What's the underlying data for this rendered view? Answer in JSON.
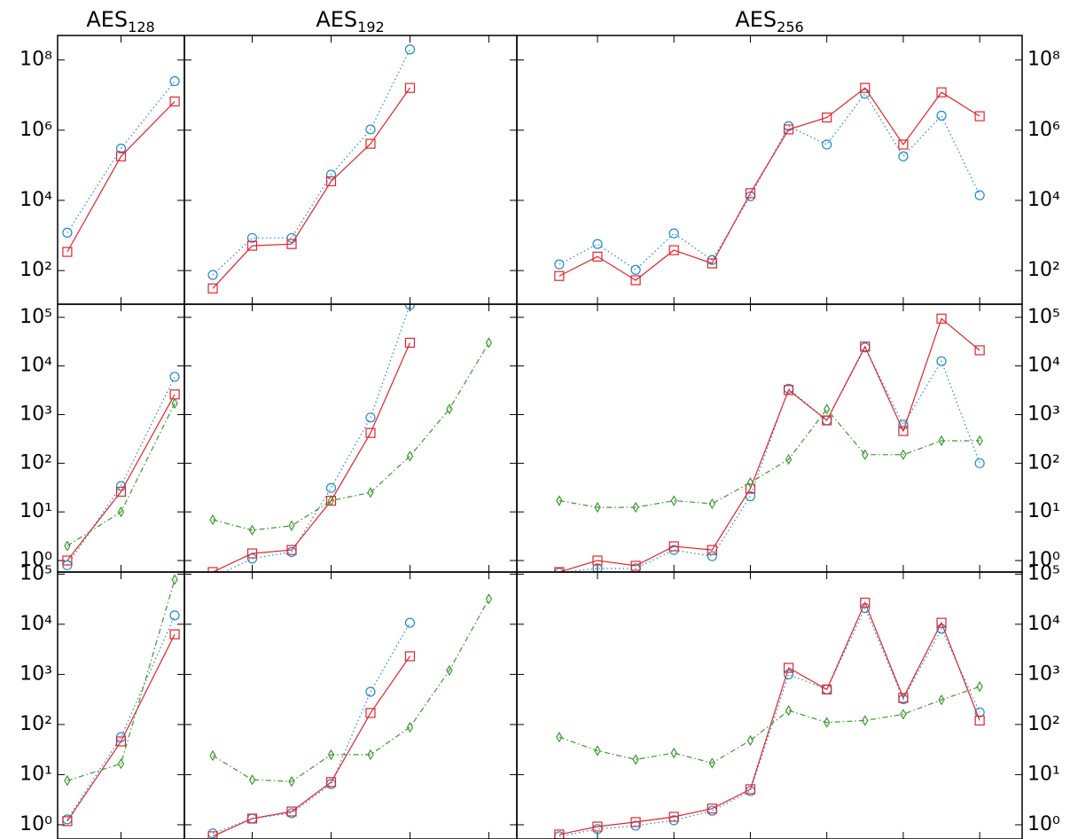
{
  "column_titles": [
    {
      "base": "AES",
      "sub": "128"
    },
    {
      "base": "AES",
      "sub": "192"
    },
    {
      "base": "AES",
      "sub": "256"
    }
  ],
  "chart_data": [
    {
      "type": "line",
      "log_y": true,
      "ylim": [
        11,
        500000000
      ],
      "yticks": [
        {
          "value": 100,
          "label": "10²"
        },
        {
          "value": 10000,
          "label": "10⁴"
        },
        {
          "value": 1000000,
          "label": "10⁶"
        },
        {
          "value": 100000000,
          "label": "10⁸"
        }
      ],
      "panels": [
        {
          "xlim": [
            0.82,
            3.18
          ],
          "xticks": [
            2
          ],
          "series": [
            {
              "color": "#1a8ad4",
              "marker": "circle",
              "dash": "dotted",
              "x": [
                1,
                2,
                3
              ],
              "values": [
                1200,
                300000,
                25000000
              ]
            },
            {
              "color": "#e3242b",
              "marker": "square",
              "dash": "solid",
              "x": [
                1,
                2,
                3
              ],
              "values": [
                340,
                180000,
                6600000
              ]
            }
          ]
        },
        {
          "xlim": [
            0.28,
            8.71
          ],
          "xticks": [
            2,
            4,
            6,
            8
          ],
          "series": [
            {
              "color": "#1a8ad4",
              "marker": "circle",
              "dash": "dotted",
              "x": [
                1,
                2,
                3,
                4,
                5,
                6
              ],
              "values": [
                75,
                850,
                850,
                54000,
                1050000,
                200000000
              ]
            },
            {
              "color": "#e3242b",
              "marker": "square",
              "dash": "solid",
              "x": [
                1,
                2,
                3,
                4,
                5,
                6
              ],
              "values": [
                31,
                510,
                570,
                35000,
                410000,
                16000000
              ]
            }
          ]
        },
        {
          "xlim": [
            -0.11,
            13.11
          ],
          "xticks": [
            2,
            4,
            6,
            8,
            10,
            12
          ],
          "series": [
            {
              "color": "#1a8ad4",
              "marker": "circle",
              "dash": "dotted",
              "x": [
                1,
                2,
                3,
                4,
                5,
                6,
                7,
                8,
                9,
                10,
                11,
                12
              ],
              "values": [
                150,
                570,
                105,
                1150,
                200,
                13000,
                1300000,
                390000,
                11000000,
                180000,
                2600000,
                14000
              ]
            },
            {
              "color": "#e3242b",
              "marker": "square",
              "dash": "solid",
              "x": [
                1,
                2,
                3,
                4,
                5,
                6,
                7,
                8,
                9,
                10,
                11,
                12
              ],
              "values": [
                70,
                250,
                53,
                380,
                160,
                16000,
                1050000,
                2300000,
                16000000,
                390000,
                12000000,
                2500000
              ]
            }
          ]
        }
      ]
    },
    {
      "type": "line",
      "log_y": true,
      "ylim": [
        0.58,
        186000
      ],
      "yticks": [
        {
          "value": 1,
          "label": "10⁰"
        },
        {
          "value": 10,
          "label": "10¹"
        },
        {
          "value": 100,
          "label": "10²"
        },
        {
          "value": 1000,
          "label": "10³"
        },
        {
          "value": 10000,
          "label": "10⁴"
        },
        {
          "value": 100000,
          "label": "10⁵"
        }
      ],
      "panels": [
        {
          "xlim": [
            0.82,
            3.18
          ],
          "xticks": [
            2
          ],
          "series": [
            {
              "color": "#1a8ad4",
              "marker": "circle",
              "dash": "dotted",
              "x": [
                1,
                2,
                3
              ],
              "values": [
                0.8,
                34,
                6000
              ]
            },
            {
              "color": "#e3242b",
              "marker": "square",
              "dash": "solid",
              "x": [
                1,
                2,
                3
              ],
              "values": [
                1,
                26,
                2600
              ]
            },
            {
              "color": "#3c9a2e",
              "marker": "diamond",
              "dash": "dashdot",
              "x": [
                1,
                2,
                3
              ],
              "values": [
                2,
                10,
                1700
              ]
            }
          ]
        },
        {
          "xlim": [
            0.28,
            8.71
          ],
          "xticks": [
            2,
            4,
            6,
            8
          ],
          "series": [
            {
              "color": "#1a8ad4",
              "marker": "circle",
              "dash": "dotted",
              "x": [
                1,
                2,
                3,
                4,
                5,
                6
              ],
              "values": [
                0.45,
                1.1,
                1.5,
                31,
                870,
                180000
              ]
            },
            {
              "color": "#e3242b",
              "marker": "square",
              "dash": "solid",
              "x": [
                1,
                2,
                3,
                4,
                5,
                6
              ],
              "values": [
                0.58,
                1.4,
                1.65,
                17,
                420,
                30000
              ]
            },
            {
              "color": "#3c9a2e",
              "marker": "diamond",
              "dash": "dashdot",
              "x": [
                1,
                2,
                3,
                4,
                5,
                6,
                7,
                8
              ],
              "values": [
                6.9,
                4.2,
                5.2,
                17,
                25,
                140,
                1300,
                30000
              ]
            }
          ]
        },
        {
          "xlim": [
            -0.11,
            13.11
          ],
          "xticks": [
            2,
            4,
            6,
            8,
            10,
            12
          ],
          "series": [
            {
              "color": "#1a8ad4",
              "marker": "circle",
              "dash": "dotted",
              "x": [
                1,
                2,
                3,
                4,
                5,
                6,
                7,
                8,
                9,
                10,
                11,
                12
              ],
              "values": [
                0.56,
                0.69,
                0.69,
                1.65,
                1.23,
                21,
                3400,
                760,
                24000,
                620,
                12500,
                100
              ]
            },
            {
              "color": "#e3242b",
              "marker": "square",
              "dash": "solid",
              "x": [
                1,
                2,
                3,
                4,
                5,
                6,
                7,
                8,
                9,
                10,
                11,
                12
              ],
              "values": [
                0.58,
                1,
                0.78,
                1.96,
                1.65,
                30,
                3200,
                760,
                25000,
                460,
                94000,
                21000
              ]
            },
            {
              "color": "#3c9a2e",
              "marker": "diamond",
              "dash": "dashdot",
              "x": [
                1,
                2,
                3,
                4,
                5,
                6,
                7,
                8,
                9,
                10,
                11,
                12
              ],
              "values": [
                17,
                12.4,
                12.4,
                17,
                14.7,
                40,
                120,
                1300,
                150,
                150,
                290,
                290
              ]
            }
          ]
        }
      ]
    },
    {
      "type": "line",
      "log_y": true,
      "ylim": [
        0.52,
        110000
      ],
      "yticks": [
        {
          "value": 1,
          "label": "10⁰"
        },
        {
          "value": 10,
          "label": "10¹"
        },
        {
          "value": 100,
          "label": "10²"
        },
        {
          "value": 1000,
          "label": "10³"
        },
        {
          "value": 10000,
          "label": "10⁴"
        },
        {
          "value": 100000,
          "label": "10⁵"
        }
      ],
      "panels": [
        {
          "xlim": [
            0.82,
            3.18
          ],
          "xticks": [
            2
          ],
          "series": [
            {
              "color": "#1a8ad4",
              "marker": "circle",
              "dash": "dotted",
              "x": [
                1,
                2,
                3
              ],
              "values": [
                1.28,
                56,
                15000
              ]
            },
            {
              "color": "#e3242b",
              "marker": "square",
              "dash": "solid",
              "x": [
                1,
                2,
                3
              ],
              "values": [
                1.18,
                46,
                6300
              ]
            },
            {
              "color": "#3c9a2e",
              "marker": "diamond",
              "dash": "dashdot",
              "x": [
                1,
                2,
                3
              ],
              "values": [
                7.6,
                16.5,
                78000
              ]
            }
          ]
        },
        {
          "xlim": [
            0.28,
            8.71
          ],
          "xticks": [
            2,
            4,
            6,
            8
          ],
          "series": [
            {
              "color": "#1a8ad4",
              "marker": "circle",
              "dash": "dotted",
              "x": [
                1,
                2,
                3,
                4,
                5,
                6
              ],
              "values": [
                0.67,
                1.33,
                1.7,
                6.5,
                450,
                10700
              ]
            },
            {
              "color": "#e3242b",
              "marker": "square",
              "dash": "solid",
              "x": [
                1,
                2,
                3,
                4,
                5,
                6
              ],
              "values": [
                0.59,
                1.33,
                1.84,
                7.1,
                170,
                2300
              ]
            },
            {
              "color": "#3c9a2e",
              "marker": "diamond",
              "dash": "dashdot",
              "x": [
                1,
                2,
                3,
                4,
                5,
                6,
                7,
                8
              ],
              "values": [
                24,
                7.9,
                7.3,
                25,
                25,
                88,
                1200,
                32000
              ]
            }
          ]
        },
        {
          "xlim": [
            -0.11,
            13.11
          ],
          "xticks": [
            2,
            4,
            6,
            8,
            10,
            12
          ],
          "series": [
            {
              "color": "#1a8ad4",
              "marker": "circle",
              "dash": "dotted",
              "x": [
                1,
                2,
                3,
                4,
                5,
                6,
                7,
                8,
                9,
                10,
                11,
                12
              ],
              "values": [
                0.59,
                0.82,
                0.96,
                1.23,
                1.9,
                4.7,
                1000,
                500,
                21000,
                320,
                8100,
                175
              ]
            },
            {
              "color": "#e3242b",
              "marker": "square",
              "dash": "solid",
              "x": [
                1,
                2,
                3,
                4,
                5,
                6,
                7,
                8,
                9,
                10,
                11,
                12
              ],
              "values": [
                0.64,
                0.92,
                1.13,
                1.44,
                2.1,
                5.1,
                1350,
                500,
                27000,
                340,
                10700,
                120
              ]
            },
            {
              "color": "#3c9a2e",
              "marker": "diamond",
              "dash": "dashdot",
              "x": [
                1,
                2,
                3,
                4,
                5,
                6,
                7,
                8,
                9,
                10,
                11,
                12
              ],
              "values": [
                56,
                30,
                20,
                27,
                17,
                48,
                190,
                110,
                120,
                160,
                310,
                570
              ]
            }
          ]
        }
      ]
    }
  ]
}
